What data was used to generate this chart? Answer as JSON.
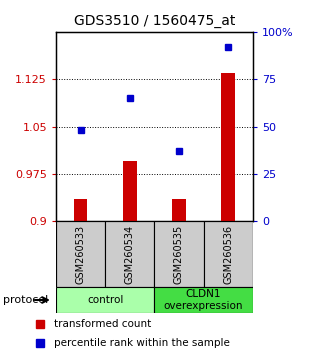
{
  "title": "GDS3510 / 1560475_at",
  "samples": [
    "GSM260533",
    "GSM260534",
    "GSM260535",
    "GSM260536"
  ],
  "bar_values": [
    0.935,
    0.995,
    0.935,
    1.135
  ],
  "bar_base": 0.9,
  "percentile_values": [
    48,
    65,
    37,
    92
  ],
  "ylim_left": [
    0.9,
    1.2
  ],
  "ylim_right": [
    0,
    100
  ],
  "yticks_left": [
    0.9,
    0.975,
    1.05,
    1.125
  ],
  "ytick_labels_left": [
    "0.9",
    "0.975",
    "1.05",
    "1.125"
  ],
  "yticks_right": [
    0,
    25,
    50,
    75,
    100
  ],
  "ytick_labels_right": [
    "0",
    "25",
    "50",
    "75",
    "100%"
  ],
  "bar_color": "#cc0000",
  "dot_color": "#0000cc",
  "groups": [
    {
      "label": "control",
      "samples": [
        0,
        1
      ],
      "color": "#aaffaa"
    },
    {
      "label": "CLDN1\noverexpression",
      "samples": [
        2,
        3
      ],
      "color": "#44dd44"
    }
  ],
  "legend_bar_label": "transformed count",
  "legend_dot_label": "percentile rank within the sample",
  "protocol_label": "protocol",
  "tick_label_color_left": "#cc0000",
  "tick_label_color_right": "#0000cc",
  "sample_bg_color": "#cccccc",
  "plot_bg": "#ffffff"
}
